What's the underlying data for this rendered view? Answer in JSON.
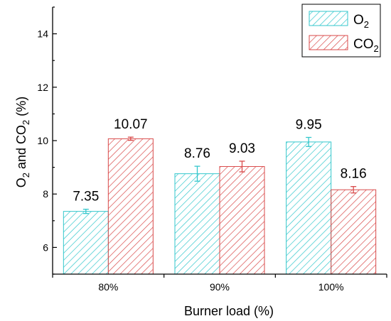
{
  "chart_data": {
    "type": "bar",
    "categories": [
      "80%",
      "90%",
      "100%"
    ],
    "series": [
      {
        "name": "O2",
        "name_main": "O",
        "name_sub": "2",
        "values": [
          7.35,
          8.76,
          9.95
        ],
        "errors": [
          0.08,
          0.28,
          0.17
        ],
        "labels": [
          "7.35",
          "8.76",
          "9.95"
        ],
        "color": "#33c7cc"
      },
      {
        "name": "CO2",
        "name_main": "CO",
        "name_sub": "2",
        "values": [
          10.07,
          9.03,
          8.16
        ],
        "errors": [
          0.06,
          0.2,
          0.12
        ],
        "labels": [
          "10.07",
          "9.03",
          "8.16"
        ],
        "color": "#d94a4a"
      }
    ],
    "xlabel": "Burner load (%)",
    "ylabel": {
      "part1": "O",
      "sub1": "2",
      "part2": " and CO",
      "sub2": "2",
      "part3": "  (%)"
    },
    "ylim": [
      5.0,
      15.0
    ],
    "yticks": [
      6,
      8,
      10,
      12,
      14
    ],
    "grid": false,
    "legend_position": "top-right"
  }
}
